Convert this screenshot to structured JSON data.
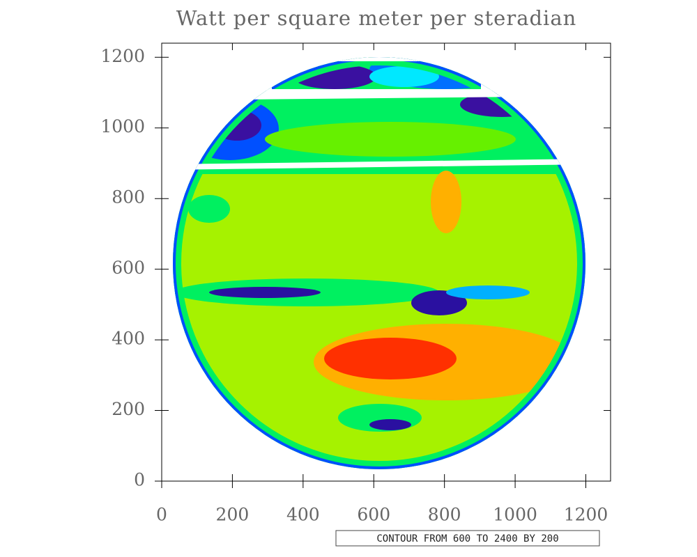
{
  "chart_data": {
    "type": "image",
    "title": "Watt per square meter per steradian",
    "annotation": "CONTOUR FROM 600 TO 2400 BY 200",
    "xlim": [
      0,
      1270
    ],
    "ylim": [
      0,
      1240
    ],
    "xticks": [
      0,
      200,
      400,
      600,
      800,
      1000,
      1200
    ],
    "yticks": [
      0,
      200,
      400,
      600,
      800,
      1000,
      1200
    ]
  }
}
